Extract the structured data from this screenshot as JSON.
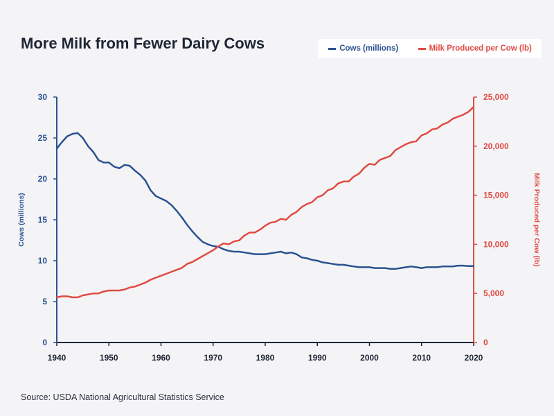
{
  "title": "More Milk from Fewer Dairy Cows",
  "source": "Source: USDA National Agricultural Statistics Service",
  "colors": {
    "cows": "#2a5290",
    "milk": "#e04b43",
    "axis_text": "#1e2533"
  },
  "legend": [
    {
      "label": "Cows (millions)",
      "color": "#2a5290"
    },
    {
      "label": "Milk Produced per Cow (lb)",
      "color": "#e04b43"
    }
  ],
  "chart_data": {
    "type": "line",
    "title": "More Milk from Fewer Dairy Cows",
    "xlabel": "",
    "xlim": [
      1940,
      2020
    ],
    "x_ticks": [
      "1940",
      "1950",
      "1960",
      "1970",
      "1980",
      "1990",
      "2000",
      "2010",
      "2020"
    ],
    "y_left": {
      "label": "Cows (millions)",
      "lim": [
        0,
        30
      ],
      "ticks": [
        "0",
        "5",
        "10",
        "15",
        "20",
        "25",
        "30"
      ]
    },
    "y_right": {
      "label": "Milk Produced per Cow (lb)",
      "lim": [
        0,
        25000
      ],
      "ticks": [
        "0",
        "5,000",
        "10,000",
        "15,000",
        "20,000",
        "25,000"
      ]
    },
    "series": [
      {
        "name": "Cows (millions)",
        "axis": "left",
        "color": "#2a5290",
        "x": [
          1940,
          1941,
          1942,
          1943,
          1944,
          1945,
          1946,
          1947,
          1948,
          1949,
          1950,
          1951,
          1952,
          1953,
          1954,
          1955,
          1956,
          1957,
          1958,
          1959,
          1960,
          1961,
          1962,
          1963,
          1964,
          1965,
          1966,
          1967,
          1968,
          1969,
          1970,
          1971,
          1972,
          1973,
          1974,
          1975,
          1976,
          1977,
          1978,
          1979,
          1980,
          1981,
          1982,
          1983,
          1984,
          1985,
          1986,
          1987,
          1988,
          1989,
          1990,
          1991,
          1992,
          1993,
          1994,
          1995,
          1996,
          1997,
          1998,
          1999,
          2000,
          2001,
          2002,
          2003,
          2004,
          2005,
          2006,
          2007,
          2008,
          2009,
          2010,
          2011,
          2012,
          2013,
          2014,
          2015,
          2016,
          2017,
          2018,
          2019,
          2020
        ],
        "values": [
          23.7,
          24.5,
          25.2,
          25.5,
          25.6,
          25.0,
          24.0,
          23.3,
          22.3,
          22.0,
          22.0,
          21.5,
          21.3,
          21.7,
          21.6,
          21.0,
          20.5,
          19.8,
          18.6,
          17.9,
          17.6,
          17.3,
          16.8,
          16.1,
          15.3,
          14.4,
          13.6,
          12.9,
          12.3,
          12.0,
          11.8,
          11.7,
          11.4,
          11.2,
          11.1,
          11.1,
          11.0,
          10.9,
          10.8,
          10.8,
          10.8,
          10.9,
          11.0,
          11.1,
          10.9,
          11.0,
          10.8,
          10.4,
          10.3,
          10.1,
          10.0,
          9.8,
          9.7,
          9.6,
          9.5,
          9.5,
          9.4,
          9.3,
          9.2,
          9.2,
          9.2,
          9.1,
          9.1,
          9.1,
          9.0,
          9.0,
          9.1,
          9.2,
          9.3,
          9.2,
          9.1,
          9.2,
          9.2,
          9.2,
          9.3,
          9.3,
          9.3,
          9.4,
          9.4,
          9.35,
          9.35
        ]
      },
      {
        "name": "Milk Produced per Cow (lb)",
        "axis": "right",
        "color": "#e04b43",
        "x": [
          1940,
          1941,
          1942,
          1943,
          1944,
          1945,
          1946,
          1947,
          1948,
          1949,
          1950,
          1951,
          1952,
          1953,
          1954,
          1955,
          1956,
          1957,
          1958,
          1959,
          1960,
          1961,
          1962,
          1963,
          1964,
          1965,
          1966,
          1967,
          1968,
          1969,
          1970,
          1971,
          1972,
          1973,
          1974,
          1975,
          1976,
          1977,
          1978,
          1979,
          1980,
          1981,
          1982,
          1983,
          1984,
          1985,
          1986,
          1987,
          1988,
          1989,
          1990,
          1991,
          1992,
          1993,
          1994,
          1995,
          1996,
          1997,
          1998,
          1999,
          2000,
          2001,
          2002,
          2003,
          2004,
          2005,
          2006,
          2007,
          2008,
          2009,
          2010,
          2011,
          2012,
          2013,
          2014,
          2015,
          2016,
          2017,
          2018,
          2019,
          2020
        ],
        "values": [
          4600,
          4700,
          4700,
          4600,
          4600,
          4800,
          4900,
          5000,
          5000,
          5200,
          5300,
          5300,
          5300,
          5400,
          5600,
          5700,
          5900,
          6100,
          6400,
          6600,
          6800,
          7000,
          7200,
          7400,
          7600,
          8000,
          8200,
          8500,
          8800,
          9100,
          9400,
          9800,
          10100,
          10000,
          10300,
          10400,
          10900,
          11200,
          11200,
          11500,
          11900,
          12200,
          12300,
          12600,
          12500,
          13000,
          13300,
          13800,
          14100,
          14300,
          14800,
          15000,
          15500,
          15700,
          16200,
          16400,
          16400,
          16900,
          17200,
          17800,
          18200,
          18100,
          18600,
          18800,
          19000,
          19600,
          19900,
          20200,
          20400,
          20500,
          21100,
          21300,
          21700,
          21800,
          22200,
          22400,
          22800,
          23000,
          23200,
          23500,
          24000
        ]
      }
    ]
  }
}
